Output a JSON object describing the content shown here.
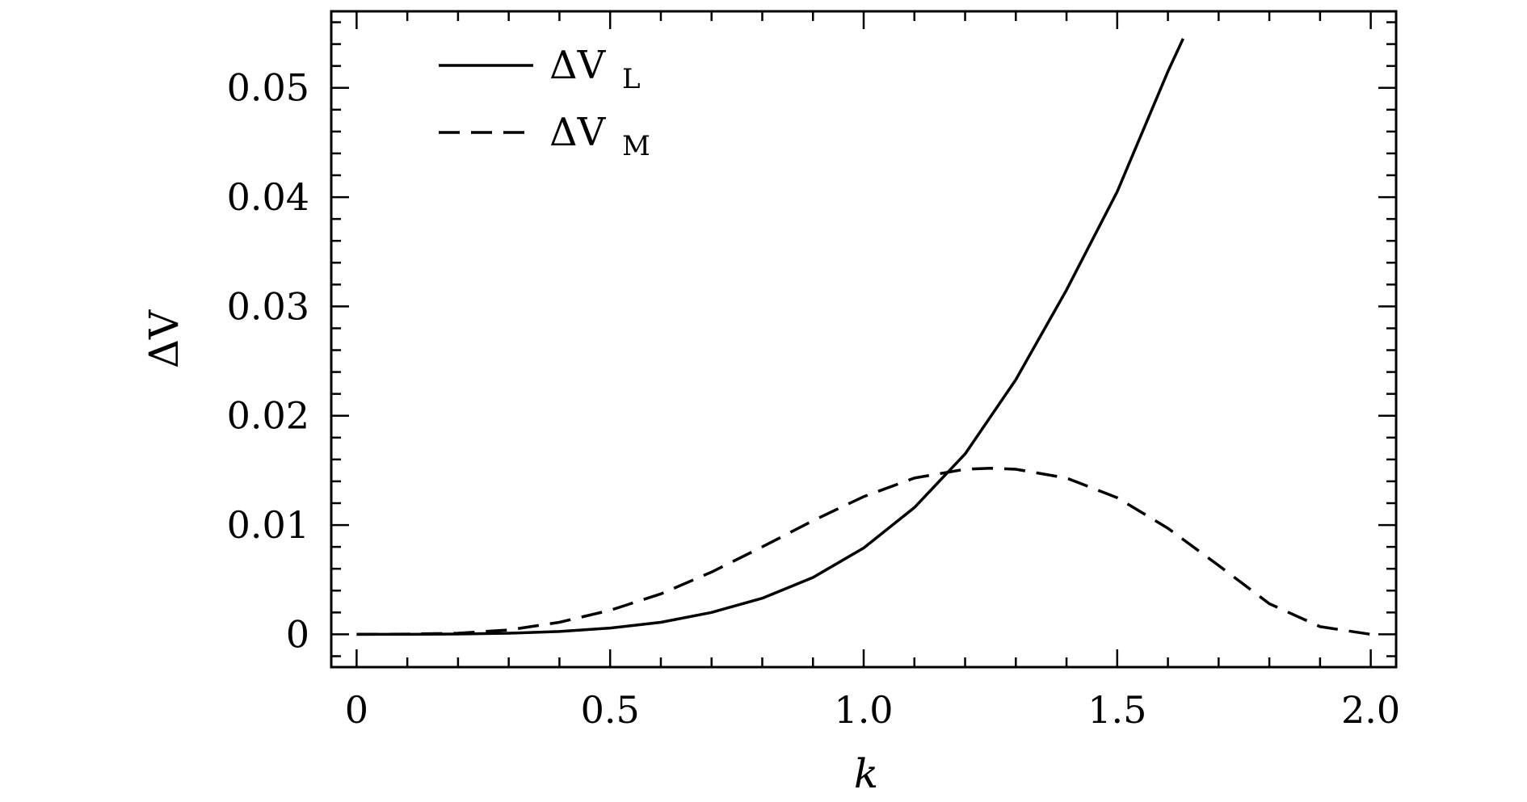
{
  "chart_data": {
    "type": "line",
    "xlabel": "k",
    "ylabel": "ΔV",
    "xlim": [
      -0.05,
      2.05
    ],
    "ylim": [
      -0.003,
      0.057
    ],
    "x_ticks": [
      0,
      0.5,
      1.0,
      1.5,
      2.0
    ],
    "x_tick_labels": [
      "0",
      "0.5",
      "1.0",
      "1.5",
      "2.0"
    ],
    "y_ticks": [
      0,
      0.01,
      0.02,
      0.03,
      0.04,
      0.05
    ],
    "y_tick_labels": [
      "0",
      "0.01",
      "0.02",
      "0.03",
      "0.04",
      "0.05"
    ],
    "grid": false,
    "legend_position": "top-left",
    "series": [
      {
        "legend_main": "ΔV",
        "legend_sub": "L",
        "line_style": "solid",
        "color": "#000000",
        "x": [
          0,
          0.1,
          0.2,
          0.3,
          0.4,
          0.5,
          0.6,
          0.7,
          0.8,
          0.9,
          1.0,
          1.1,
          1.2,
          1.3,
          1.4,
          1.5,
          1.6,
          1.63
        ],
        "y": [
          0,
          0,
          3e-05,
          0.0001,
          0.00026,
          0.00058,
          0.0011,
          0.002,
          0.0033,
          0.0052,
          0.0079,
          0.0116,
          0.0165,
          0.0233,
          0.0315,
          0.0405,
          0.0515,
          0.0545
        ]
      },
      {
        "legend_main": "ΔV",
        "legend_sub": "M",
        "line_style": "dashed",
        "color": "#000000",
        "x": [
          0,
          0.1,
          0.2,
          0.3,
          0.4,
          0.5,
          0.6,
          0.7,
          0.8,
          0.9,
          1.0,
          1.1,
          1.2,
          1.25,
          1.3,
          1.4,
          1.5,
          1.6,
          1.7,
          1.8,
          1.9,
          2.0
        ],
        "y": [
          0,
          2e-05,
          0.0001,
          0.0004,
          0.0011,
          0.0022,
          0.0037,
          0.0057,
          0.008,
          0.0104,
          0.0126,
          0.0143,
          0.0151,
          0.0152,
          0.0151,
          0.0143,
          0.0125,
          0.0097,
          0.0063,
          0.0028,
          0.0007,
          0.0
        ]
      }
    ]
  }
}
